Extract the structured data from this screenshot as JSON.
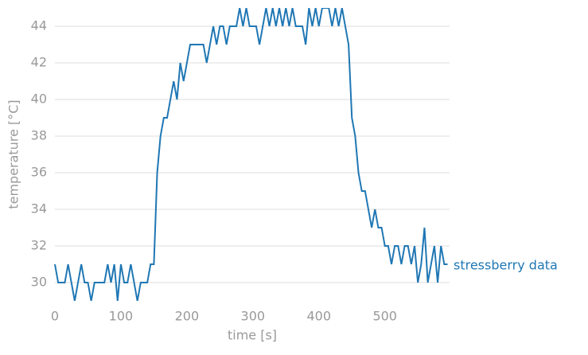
{
  "chart_data": {
    "type": "line",
    "x_label": "time [s]",
    "y_label": "temperature [°C]",
    "x": [
      0,
      5,
      10,
      15,
      20,
      25,
      30,
      35,
      40,
      45,
      50,
      55,
      60,
      65,
      70,
      75,
      80,
      85,
      90,
      95,
      100,
      105,
      110,
      115,
      120,
      125,
      130,
      135,
      140,
      145,
      150,
      155,
      160,
      165,
      170,
      175,
      180,
      185,
      190,
      195,
      200,
      205,
      210,
      215,
      220,
      225,
      230,
      235,
      240,
      245,
      250,
      255,
      260,
      265,
      270,
      275,
      280,
      285,
      290,
      295,
      300,
      305,
      310,
      315,
      320,
      325,
      330,
      335,
      340,
      345,
      350,
      355,
      360,
      365,
      370,
      375,
      380,
      385,
      390,
      395,
      400,
      405,
      410,
      415,
      420,
      425,
      430,
      435,
      440,
      445,
      450,
      455,
      460,
      465,
      470,
      475,
      480,
      485,
      490,
      495,
      500,
      505,
      510,
      515,
      520,
      525,
      530,
      535,
      540,
      545,
      550,
      555,
      560,
      565,
      570,
      575,
      580,
      585,
      590,
      595
    ],
    "series": [
      {
        "name": "stressberry data",
        "color": "#1f77b4",
        "values": [
          31,
          30,
          30,
          30,
          31,
          30,
          29,
          30,
          31,
          30,
          30,
          29,
          30,
          30,
          30,
          30,
          31,
          30,
          31,
          29,
          31,
          30,
          30,
          31,
          30,
          29,
          30,
          30,
          30,
          31,
          31,
          36,
          38,
          39,
          39,
          40,
          41,
          40,
          42,
          41,
          42,
          43,
          43,
          43,
          43,
          43,
          42,
          43,
          44,
          43,
          44,
          44,
          43,
          44,
          44,
          44,
          45,
          44,
          45,
          44,
          44,
          44,
          43,
          44,
          45,
          44,
          45,
          44,
          45,
          44,
          45,
          44,
          45,
          44,
          44,
          44,
          43,
          45,
          44,
          45,
          44,
          45,
          45,
          45,
          44,
          45,
          44,
          45,
          44,
          43,
          39,
          38,
          36,
          35,
          35,
          34,
          33,
          34,
          33,
          33,
          32,
          32,
          31,
          32,
          32,
          31,
          32,
          32,
          31,
          32,
          30,
          31,
          33,
          30,
          31,
          32,
          30,
          32,
          31,
          31
        ]
      }
    ],
    "xlim": [
      0,
      598
    ],
    "ylim": [
      29,
      45
    ],
    "xticks": [
      0,
      100,
      200,
      300,
      400,
      500
    ],
    "yticks": [
      30,
      32,
      34,
      36,
      38,
      40,
      42,
      44
    ],
    "grid": true
  }
}
